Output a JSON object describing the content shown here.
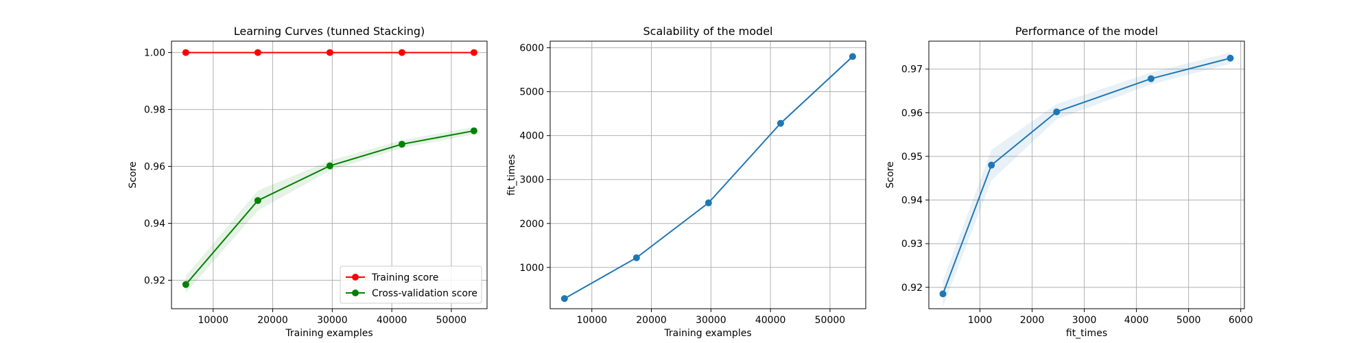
{
  "chart_data": [
    {
      "type": "line",
      "title": "Learning Curves (tunned Stacking)",
      "xlabel": "Training examples",
      "ylabel": "Score",
      "xlim": [
        3000,
        56000
      ],
      "ylim": [
        0.91,
        1.004
      ],
      "xticks": [
        10000,
        20000,
        30000,
        40000,
        50000
      ],
      "yticks": [
        0.92,
        0.94,
        0.96,
        0.98,
        1.0
      ],
      "ytick_labels": [
        "0.92",
        "0.94",
        "0.96",
        "0.98",
        "1.00"
      ],
      "grid": true,
      "legend_position": "lower-right",
      "series": [
        {
          "name": "Training score",
          "color": "#ff0000",
          "x": [
            5400,
            17500,
            29600,
            41700,
            53800
          ],
          "y": [
            1.0,
            1.0,
            1.0,
            1.0,
            1.0
          ],
          "band_lower": [
            1.0,
            1.0,
            1.0,
            1.0,
            1.0
          ],
          "band_upper": [
            1.0,
            1.0,
            1.0,
            1.0,
            1.0
          ]
        },
        {
          "name": "Cross-validation score",
          "color": "#008000",
          "x": [
            5400,
            17500,
            29600,
            41700,
            53800
          ],
          "y": [
            0.9185,
            0.948,
            0.9602,
            0.9678,
            0.9725
          ],
          "band_lower": [
            0.9155,
            0.9445,
            0.9585,
            0.9665,
            0.9712
          ],
          "band_upper": [
            0.9215,
            0.9515,
            0.962,
            0.9692,
            0.9738
          ]
        }
      ]
    },
    {
      "type": "line",
      "title": "Scalability of the model",
      "xlabel": "Training examples",
      "ylabel": "fit_times",
      "xlim": [
        3000,
        56000
      ],
      "ylim": [
        60,
        6150
      ],
      "xticks": [
        10000,
        20000,
        30000,
        40000,
        50000
      ],
      "yticks": [
        1000,
        2000,
        3000,
        4000,
        5000,
        6000
      ],
      "ytick_labels": [
        "1000",
        "2000",
        "3000",
        "4000",
        "5000",
        "6000"
      ],
      "grid": true,
      "series": [
        {
          "color": "#1f77b4",
          "x": [
            5400,
            17500,
            29600,
            41700,
            53800
          ],
          "y": [
            290,
            1220,
            2470,
            4280,
            5800
          ],
          "band_lower": [
            280,
            1205,
            2450,
            4255,
            5770
          ],
          "band_upper": [
            300,
            1235,
            2490,
            4305,
            5830
          ]
        }
      ]
    },
    {
      "type": "line",
      "title": "Performance of the model",
      "xlabel": "fit_times",
      "ylabel": "Score",
      "xlim": [
        20,
        6070
      ],
      "ylim": [
        0.9151,
        0.9764
      ],
      "xticks": [
        1000,
        2000,
        3000,
        4000,
        5000,
        6000
      ],
      "yticks": [
        0.92,
        0.93,
        0.94,
        0.95,
        0.96,
        0.97
      ],
      "ytick_labels": [
        "0.92",
        "0.93",
        "0.94",
        "0.95",
        "0.96",
        "0.97"
      ],
      "grid": true,
      "series": [
        {
          "color": "#1f77b4",
          "x": [
            290,
            1220,
            2470,
            4280,
            5800
          ],
          "y": [
            0.9185,
            0.948,
            0.9602,
            0.9678,
            0.9725
          ],
          "band_lower": [
            0.9155,
            0.9445,
            0.9585,
            0.9665,
            0.9712
          ],
          "band_upper": [
            0.9215,
            0.9515,
            0.962,
            0.9692,
            0.9738
          ]
        }
      ]
    }
  ]
}
